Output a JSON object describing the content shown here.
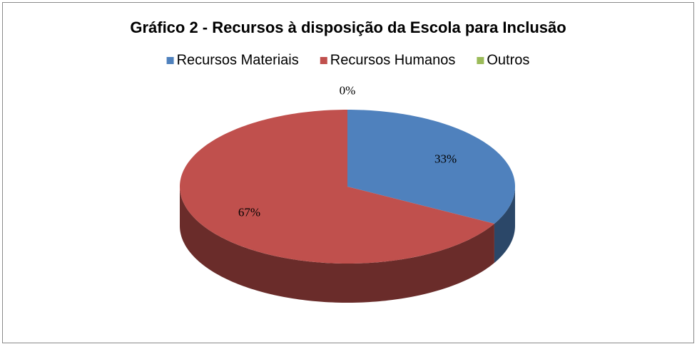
{
  "chart_data": {
    "type": "pie",
    "title": "Gráfico 2 - Recursos à disposição da Escola para Inclusão",
    "categories": [
      "Recursos Materiais",
      "Recursos Humanos",
      "Outros"
    ],
    "values": [
      33,
      67,
      0
    ],
    "value_labels": [
      "33%",
      "67%",
      "0%"
    ],
    "colors": [
      "#4f81bd",
      "#c0504d",
      "#9bbb59"
    ],
    "legend": "top"
  }
}
